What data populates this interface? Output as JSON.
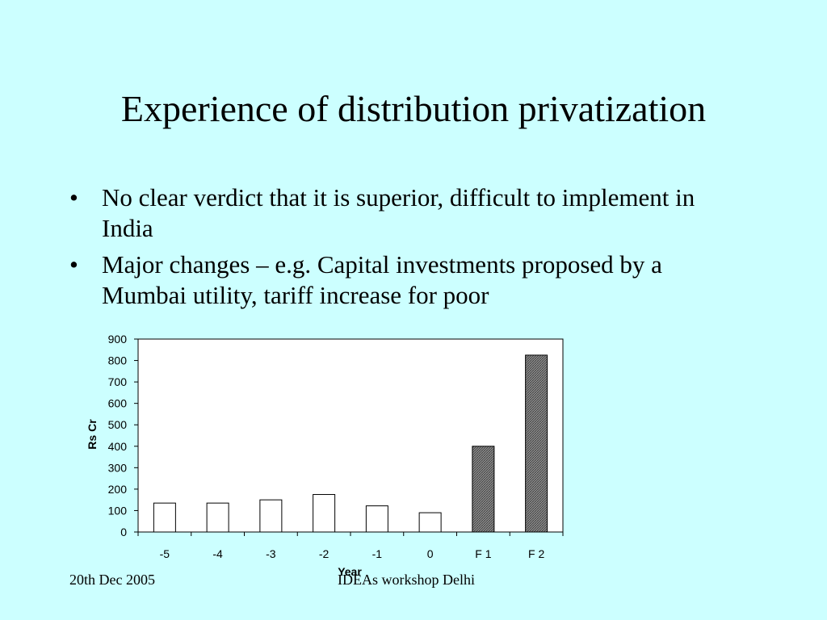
{
  "slide": {
    "title": "Experience of distribution privatization",
    "bullets": [
      "No clear verdict that it is superior, difficult to implement in India",
      "Major changes – e.g. Capital investments proposed by a Mumbai utility, tariff increase for poor"
    ],
    "bullet_symbol": "•",
    "footer_left": "20th Dec 2005",
    "footer_center": "IDEAs workshop Delhi"
  },
  "colors": {
    "background": "#ccffff",
    "plot_area": "#ffffff",
    "bar_fill": "#ffffff",
    "forecast_bar_fill": "#888888"
  },
  "chart_data": {
    "type": "bar",
    "categories": [
      "-5",
      "-4",
      "-3",
      "-2",
      "-1",
      "0",
      "F 1",
      "F 2"
    ],
    "values": [
      135,
      135,
      150,
      175,
      122,
      90,
      400,
      825
    ],
    "highlighted_categories": [
      "F 1",
      "F 2"
    ],
    "xlabel": "Year",
    "ylabel": "Rs Cr",
    "ylim": [
      0,
      900
    ],
    "yticks": [
      0,
      100,
      200,
      300,
      400,
      500,
      600,
      700,
      800,
      900
    ],
    "grid": false,
    "legend": "none"
  }
}
